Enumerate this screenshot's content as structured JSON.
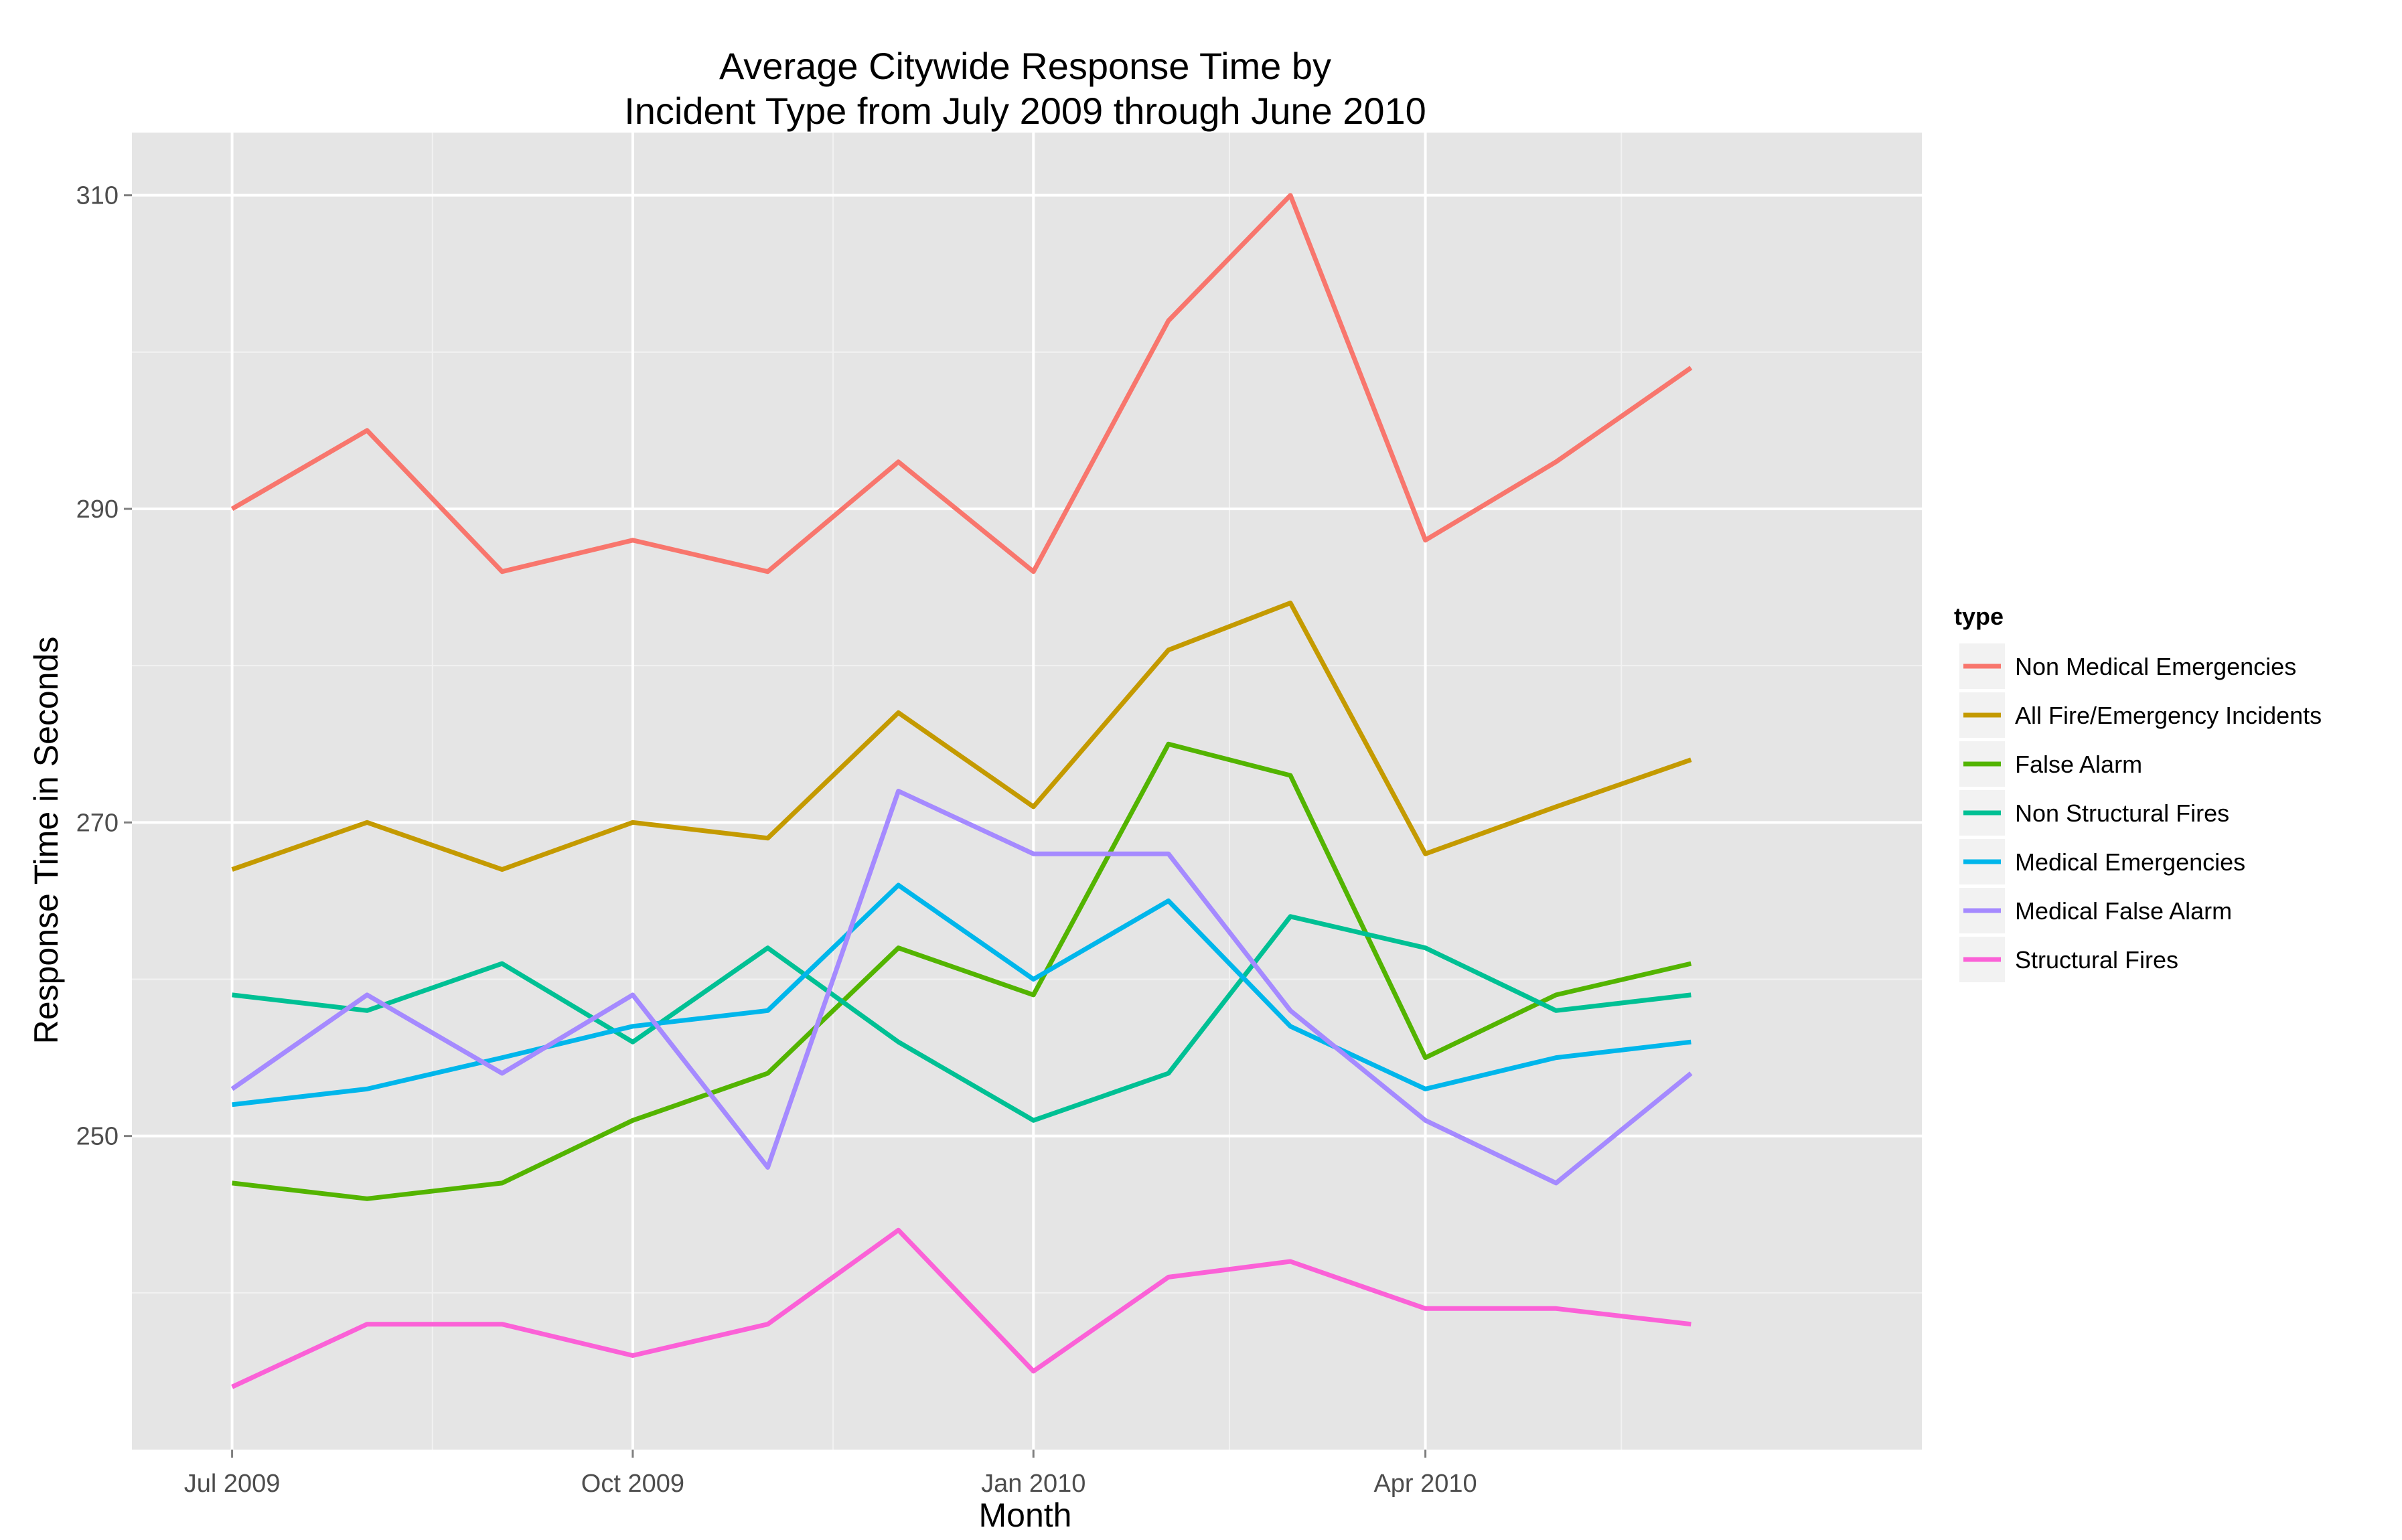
{
  "chart_data": {
    "type": "line",
    "title_line1": "Average Citywide Response Time by",
    "title_line2": "Incident Type from July 2009 through June 2010",
    "xlabel": "Month",
    "ylabel": "Response Time in Seconds",
    "x": [
      "2009-07",
      "2009-08",
      "2009-09",
      "2009-10",
      "2009-11",
      "2009-12",
      "2010-01",
      "2010-02",
      "2010-03",
      "2010-04",
      "2010-05",
      "2010-06"
    ],
    "x_ticks": [
      {
        "x": "2009-07",
        "label": "Jul 2009"
      },
      {
        "x": "2009-10",
        "label": "Oct 2009"
      },
      {
        "x": "2010-01",
        "label": "Jan 2010"
      },
      {
        "x": "2010-04",
        "label": "Apr 2010"
      }
    ],
    "y_ticks": [
      250,
      270,
      290,
      310
    ],
    "ylim": [
      230,
      314
    ],
    "xlim": [
      "2009-06-08",
      "2010-07-24"
    ],
    "grid": true,
    "legend_title": "type",
    "legend_position": "right",
    "series": [
      {
        "name": "Non Medical Emergencies",
        "color": "#F8766D",
        "values": [
          290,
          295,
          286,
          288,
          286,
          293,
          286,
          302,
          310,
          288,
          293,
          299
        ]
      },
      {
        "name": "All Fire/Emergency Incidents",
        "color": "#C49A00",
        "values": [
          267,
          270,
          267,
          270,
          269,
          277,
          271,
          281,
          284,
          268,
          271,
          274
        ]
      },
      {
        "name": "False Alarm",
        "color": "#53B400",
        "values": [
          247,
          246,
          247,
          251,
          254,
          262,
          259,
          275,
          273,
          255,
          259,
          261
        ]
      },
      {
        "name": "Non Structural Fires",
        "color": "#00C094",
        "values": [
          259,
          258,
          261,
          256,
          262,
          256,
          251,
          254,
          264,
          262,
          258,
          259
        ]
      },
      {
        "name": "Medical Emergencies",
        "color": "#00B6EB",
        "values": [
          252,
          253,
          255,
          257,
          258,
          266,
          260,
          265,
          257,
          253,
          255,
          256
        ]
      },
      {
        "name": "Medical False Alarm",
        "color": "#A58AFF",
        "values": [
          253,
          259,
          254,
          259,
          248,
          272,
          268,
          268,
          258,
          251,
          247,
          254
        ]
      },
      {
        "name": "Structural Fires",
        "color": "#FB61D7",
        "values": [
          234,
          238,
          238,
          236,
          238,
          244,
          235,
          241,
          242,
          239,
          239,
          238
        ]
      }
    ]
  }
}
